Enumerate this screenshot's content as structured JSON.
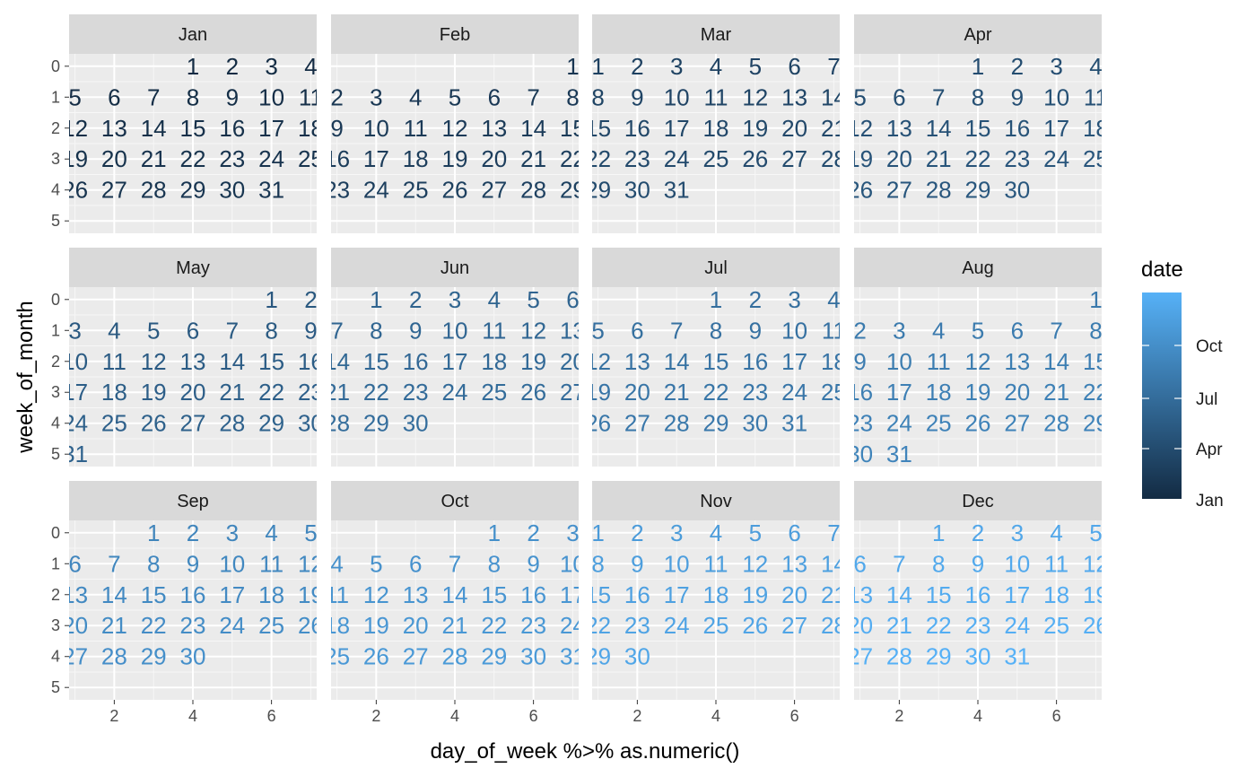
{
  "chart_data": {
    "type": "calendar-heatmap",
    "year_start_weekday_sunday_index": 4,
    "facets": [
      {
        "month": "Jan",
        "days": 31
      },
      {
        "month": "Feb",
        "days": 29
      },
      {
        "month": "Mar",
        "days": 31
      },
      {
        "month": "Apr",
        "days": 30
      },
      {
        "month": "May",
        "days": 31
      },
      {
        "month": "Jun",
        "days": 30
      },
      {
        "month": "Jul",
        "days": 31
      },
      {
        "month": "Aug",
        "days": 31
      },
      {
        "month": "Sep",
        "days": 30
      },
      {
        "month": "Oct",
        "days": 31
      },
      {
        "month": "Nov",
        "days": 30
      },
      {
        "month": "Dec",
        "days": 31
      }
    ],
    "xlabel": "day_of_week %>% as.numeric()",
    "ylabel": "week_of_month",
    "x_ticks": [
      "2",
      "4",
      "6"
    ],
    "y_ticks": [
      "0",
      "1",
      "2",
      "3",
      "4",
      "5"
    ],
    "xlim": [
      0.85,
      7.15
    ],
    "ylim": [
      5.4,
      -0.4
    ],
    "legend": {
      "title": "date",
      "labels": [
        "Jan",
        "Apr",
        "Jul",
        "Oct"
      ],
      "color_low": "#132B43",
      "color_high": "#56B1F7",
      "placement": "right"
    },
    "grid": true
  }
}
